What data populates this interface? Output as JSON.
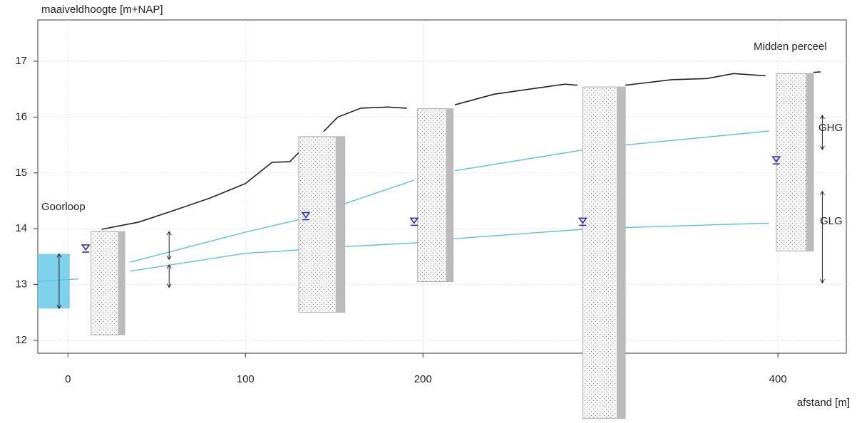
{
  "chart_data": {
    "type": "line",
    "y_label": "maaiveldhoogte [m+NAP]",
    "x_label": "afstand [m]",
    "annotations": [
      "Goorloop",
      "Midden perceel",
      "GHG",
      "GLG"
    ],
    "xlim": [
      -17,
      438.5
    ],
    "ylim": [
      11.77,
      17.74
    ],
    "xticks": [
      0,
      100,
      200,
      400
    ],
    "yticks": [
      12,
      13,
      14,
      15,
      16,
      17
    ],
    "grid": true,
    "series": [
      {
        "color": "#222222",
        "x": [
          19,
          40,
          60,
          80,
          100,
          115,
          125,
          130.5,
          null,
          144,
          152,
          165,
          180,
          191,
          null,
          218,
          240,
          260,
          280,
          287,
          null,
          314,
          340,
          360,
          375,
          393,
          null,
          420,
          424
        ],
        "values": [
          13.99,
          14.12,
          14.33,
          14.55,
          14.81,
          15.19,
          15.2,
          15.38,
          null,
          15.74,
          16.0,
          16.16,
          16.18,
          16.16,
          null,
          16.22,
          16.41,
          16.5,
          16.59,
          16.57,
          null,
          16.57,
          16.67,
          16.69,
          16.78,
          16.74,
          null,
          16.8,
          16.81
        ]
      },
      {
        "color": "#5bc0de",
        "x": [
          35,
          100,
          130,
          null,
          156,
          195,
          null,
          218,
          290,
          null,
          314,
          395
        ],
        "values": [
          13.4,
          13.94,
          14.16,
          null,
          14.45,
          14.87,
          null,
          15.04,
          15.41,
          null,
          15.5,
          15.75
        ]
      },
      {
        "color": "#5bc0de",
        "x": [
          35,
          100,
          130,
          null,
          156,
          197,
          null,
          217,
          290,
          null,
          314,
          395
        ],
        "values": [
          13.24,
          13.56,
          13.62,
          null,
          13.68,
          13.75,
          null,
          13.82,
          13.99,
          null,
          14.02,
          14.1
        ]
      },
      {
        "color": "#5bc0de",
        "x": [
          -17,
          6
        ],
        "values": [
          13.06,
          13.1
        ]
      }
    ],
    "water": {
      "color": "#7fd0ea",
      "x": [
        -17,
        1
      ],
      "y": [
        12.57,
        13.55
      ]
    },
    "boreholes": [
      {
        "x": [
          13,
          32
        ],
        "top": 13.95,
        "bottom": 12.1
      },
      {
        "x": [
          130,
          156
        ],
        "top": 15.65,
        "bottom": 12.5
      },
      {
        "x": [
          197,
          217
        ],
        "top": 16.15,
        "bottom": 13.05
      },
      {
        "x": [
          290,
          314
        ],
        "top": 16.54,
        "bottom": 10.6
      },
      {
        "x": [
          399,
          420
        ],
        "top": 16.78,
        "bottom": 13.6
      }
    ],
    "gw_levels": {
      "color": "#2222cc",
      "x": [
        10,
        134,
        195,
        290,
        399
      ],
      "y": [
        13.62,
        14.2,
        14.1,
        14.1,
        15.2
      ]
    },
    "ranges": [
      {
        "x": -5,
        "y": [
          13.55,
          12.57
        ]
      },
      {
        "x": 57,
        "y": [
          13.95,
          13.45
        ]
      },
      {
        "x": 57,
        "y": [
          13.35,
          12.95
        ]
      },
      {
        "x": 425,
        "y": [
          16.03,
          15.42
        ]
      },
      {
        "x": 425,
        "y": [
          14.67,
          13.03
        ]
      }
    ]
  }
}
